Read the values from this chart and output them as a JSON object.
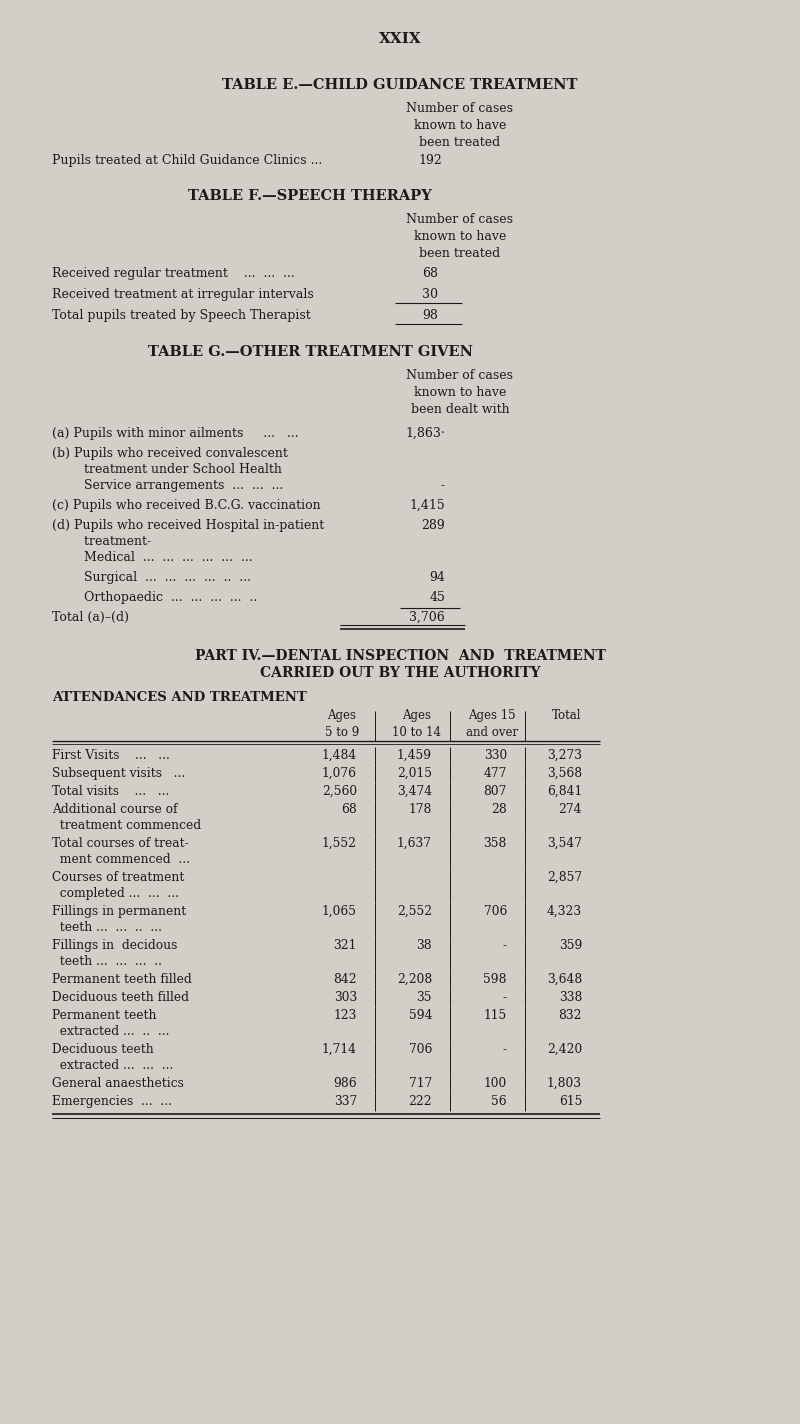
{
  "page_number": "XXIX",
  "bg_color": "#d3cfc8",
  "text_color": "#1a1a1a",
  "table_e_title": "TABLE E.—CHILD GUIDANCE TREATMENT",
  "table_e_header": "Number of cases\nknown to have\nbeen treated",
  "table_e_row": "Pupils treated at Child Guidance Clinics ...",
  "table_e_value": "192",
  "table_f_title": "TABLE F.—SPEECH THERAPY",
  "table_f_header": "Number of cases\nknown to have\nbeen treated",
  "table_f_rows": [
    [
      "Received regular treatment    ...  ...  ...",
      "68"
    ],
    [
      "Received treatment at irregular intervals",
      "30"
    ],
    [
      "Total pupils treated by Speech Therapist",
      "98"
    ]
  ],
  "table_g_title": "TABLE G.—OTHER TREATMENT GIVEN",
  "table_g_header": "Number of cases\nknown to have\nbeen dealt with",
  "table_g_rows_labels": [
    "(a) Pupils with minor ailments     ...   ...",
    "(b) Pupils who received convalescent\n        treatment under School Health\n        Service arrangements  ...  ...  ...",
    "(c) Pupils who received B.C.G. vaccination",
    "(d) Pupils who received Hospital in-patient\n        treatment-\n        Medical  ...  ...  ...  ...  ...  ...",
    "        Surgical  ...  ...  ...  ...  ..  ...",
    "        Orthopaedic  ...  ...  ...  ...  ..",
    "Total (a)–(d)"
  ],
  "table_g_rows_values": [
    "1,863·",
    "-",
    "1,415",
    "289",
    "94",
    "45",
    "3,706"
  ],
  "table_g_value_lines": [
    0,
    2,
    0,
    0,
    0,
    0,
    0
  ],
  "part_iv_title_line1": "PART IV.—DENTAL INSPECTION  AND  TREATMENT",
  "part_iv_title_line2": "CARRIED OUT BY THE AUTHORITY",
  "att_title": "ATTENDANCES AND TREATMENT",
  "dental_headers": [
    "Ages\n5 to 9",
    "Ages\n10 to 14",
    "Ages 15\nand over",
    "Total"
  ],
  "dental_rows": [
    [
      "First Visits    ...   ...",
      "1,484",
      "1,459",
      "330",
      "3,273"
    ],
    [
      "Subsequent visits   ...",
      "1,076",
      "2,015",
      "477",
      "3,568"
    ],
    [
      "Total visits    ...   ...",
      "2,560",
      "3,474",
      "807",
      "6,841"
    ],
    [
      "Additional course of\n  treatment commenced",
      "68",
      "178",
      "28",
      "274"
    ],
    [
      "Total courses of treat-\n  ment commenced  ...",
      "1,552",
      "1,637",
      "358",
      "3,547"
    ],
    [
      "Courses of treatment\n  completed ...  ...  ...",
      "",
      "",
      "",
      "2,857"
    ],
    [
      "Fillings in permanent\n  teeth ...  ...  ..  ...",
      "1,065",
      "2,552",
      "706",
      "4,323"
    ],
    [
      "Fillings in  decidous\n  teeth ...  ...  ...  ..",
      "321",
      "38",
      "-",
      "359"
    ],
    [
      "Permanent teeth filled",
      "842",
      "2,208",
      "598",
      "3,648"
    ],
    [
      "Deciduous teeth filled",
      "303",
      "35",
      "-",
      "338"
    ],
    [
      "Permanent teeth\n  extracted ...  ..  ...",
      "123",
      "594",
      "115",
      "832"
    ],
    [
      "Deciduous teeth\n  extracted ...  ...  ...",
      "1,714",
      "706",
      "-",
      "2,420"
    ],
    [
      "General anaesthetics",
      "986",
      "717",
      "100",
      "1,803"
    ],
    [
      "Emergencies  ...  ...",
      "337",
      "222",
      "56",
      "615"
    ]
  ]
}
